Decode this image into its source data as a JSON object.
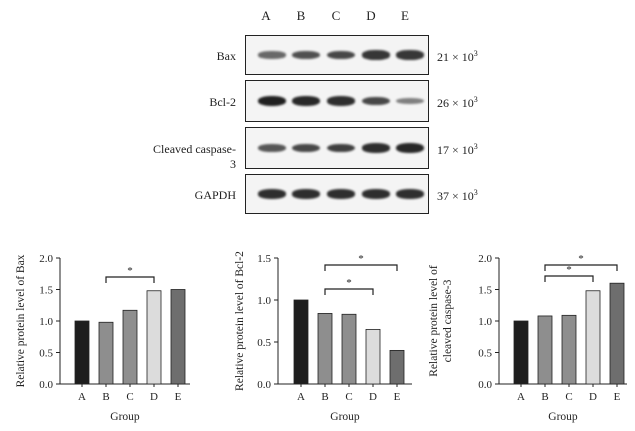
{
  "lanes": [
    "A",
    "B",
    "C",
    "D",
    "E"
  ],
  "blots": [
    {
      "protein": "Bax",
      "mw": "21 × 10",
      "mw_exp": "3",
      "band_intensity": [
        0.55,
        0.7,
        0.75,
        0.85,
        0.85
      ]
    },
    {
      "protein": "Bcl-2",
      "mw": "26 × 10",
      "mw_exp": "3",
      "band_intensity": [
        1.0,
        0.95,
        0.9,
        0.75,
        0.4
      ]
    },
    {
      "protein": "Cleaved caspase-3",
      "mw": "17 × 10",
      "mw_exp": "3",
      "band_intensity": [
        0.65,
        0.75,
        0.8,
        0.9,
        0.95
      ]
    },
    {
      "protein": "GAPDH",
      "mw": "37 × 10",
      "mw_exp": "3",
      "band_intensity": [
        0.9,
        0.9,
        0.9,
        0.9,
        0.9
      ]
    }
  ],
  "colors": {
    "bar_A": "#1e1e1e",
    "bar_B": "#8e8e8e",
    "bar_C": "#8e8e8e",
    "bar_D": "#dcdcdc",
    "bar_E": "#6e6e6e"
  },
  "chart_data": [
    {
      "type": "bar",
      "categories": [
        "A",
        "B",
        "C",
        "D",
        "E"
      ],
      "values": [
        1.0,
        0.98,
        1.17,
        1.48,
        1.5
      ],
      "ylabel": "Relative protein level of Bax",
      "xlabel": "Group",
      "ylim": [
        0,
        2.0
      ],
      "yticks": [
        "0.0",
        "0.5",
        "1.0",
        "1.5",
        "2.0"
      ],
      "significance": [
        {
          "from": "B",
          "to": "D",
          "label": "*"
        }
      ]
    },
    {
      "type": "bar",
      "categories": [
        "A",
        "B",
        "C",
        "D",
        "E"
      ],
      "values": [
        1.0,
        0.84,
        0.83,
        0.65,
        0.4
      ],
      "ylabel": "Relative protein level of Bcl-2",
      "xlabel": "Group",
      "ylim": [
        0,
        1.5
      ],
      "yticks": [
        "0.0",
        "0.5",
        "1.0",
        "1.5"
      ],
      "significance": [
        {
          "from": "B",
          "to": "D",
          "label": "*"
        },
        {
          "from": "B",
          "to": "E",
          "label": "*"
        }
      ]
    },
    {
      "type": "bar",
      "categories": [
        "A",
        "B",
        "C",
        "D",
        "E"
      ],
      "values": [
        1.0,
        1.08,
        1.09,
        1.48,
        1.6
      ],
      "ylabel_lines": [
        "Relative protein level of",
        "cleaved caspase-3"
      ],
      "xlabel": "Group",
      "ylim": [
        0,
        2.0
      ],
      "yticks": [
        "0.0",
        "0.5",
        "1.0",
        "1.5",
        "2.0"
      ],
      "significance": [
        {
          "from": "B",
          "to": "D",
          "label": "*"
        },
        {
          "from": "B",
          "to": "E",
          "label": "*"
        }
      ]
    }
  ]
}
